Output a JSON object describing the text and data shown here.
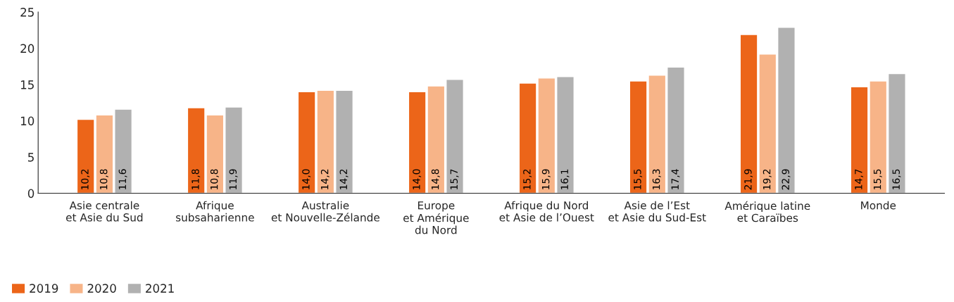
{
  "chart_data": {
    "type": "bar",
    "categories": [
      "Asie centrale\net Asie du Sud",
      "Afrique\nsubsaharienne",
      "Australie\net Nouvelle-Zélande",
      "Europe\net Amérique\ndu Nord",
      "Afrique du Nord\net Asie de l’Ouest",
      "Asie de l’Est\net Asie du Sud-Est",
      "Amérique latine\net Caraïbes",
      "Monde"
    ],
    "series": [
      {
        "name": "2019",
        "color": "#ec6519",
        "values": [
          10.2,
          11.8,
          14.0,
          14.0,
          15.2,
          15.5,
          21.9,
          14.7
        ],
        "value_labels": [
          "10,2",
          "11,8",
          "14,0",
          "14,0",
          "15,2",
          "15,5",
          "21,9",
          "14,7"
        ]
      },
      {
        "name": "2020",
        "color": "#f7b488",
        "values": [
          10.8,
          10.8,
          14.2,
          14.8,
          15.9,
          16.3,
          19.2,
          15.5
        ],
        "value_labels": [
          "10,8",
          "10,8",
          "14,2",
          "14,8",
          "15,9",
          "16,3",
          "19,2",
          "15,5"
        ]
      },
      {
        "name": "2021",
        "color": "#b1b1b1",
        "values": [
          11.6,
          11.9,
          14.2,
          15.7,
          16.1,
          17.4,
          22.9,
          16.5
        ],
        "value_labels": [
          "11,6",
          "11,9",
          "14,2",
          "15,7",
          "16,1",
          "17,4",
          "22,9",
          "16,5"
        ]
      }
    ],
    "ylim": [
      0,
      25
    ],
    "yticks": [
      0,
      5,
      10,
      15,
      20,
      25
    ],
    "grid": false,
    "legend": "bottom left"
  }
}
